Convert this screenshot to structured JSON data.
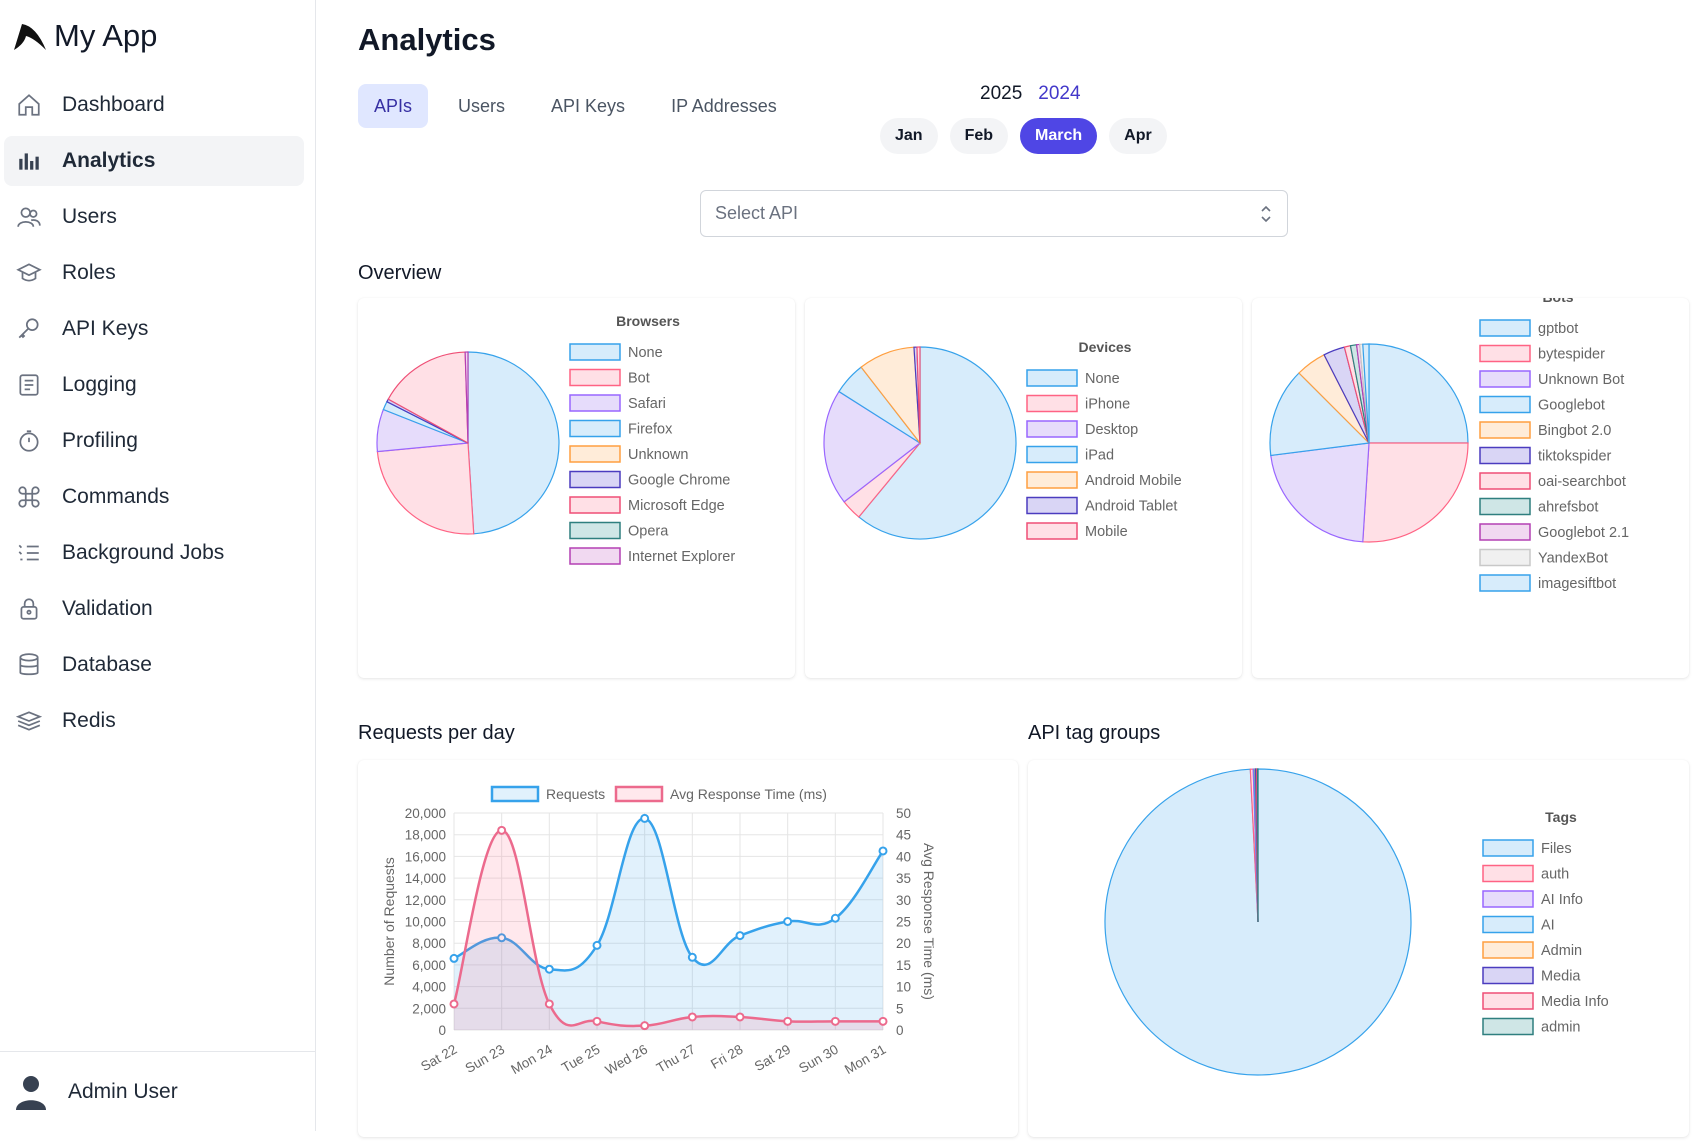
{
  "app": {
    "name": "My App"
  },
  "sidebar": {
    "items": [
      {
        "label": "Dashboard",
        "icon": "home-icon"
      },
      {
        "label": "Analytics",
        "icon": "bar-chart-icon",
        "active": true
      },
      {
        "label": "Users",
        "icon": "users-icon"
      },
      {
        "label": "Roles",
        "icon": "graduation-cap-icon"
      },
      {
        "label": "API Keys",
        "icon": "key-icon"
      },
      {
        "label": "Logging",
        "icon": "document-icon"
      },
      {
        "label": "Profiling",
        "icon": "stopwatch-icon"
      },
      {
        "label": "Commands",
        "icon": "command-icon"
      },
      {
        "label": "Background Jobs",
        "icon": "list-icon"
      },
      {
        "label": "Validation",
        "icon": "lock-icon"
      },
      {
        "label": "Database",
        "icon": "database-icon"
      },
      {
        "label": "Redis",
        "icon": "layers-icon"
      }
    ],
    "user": "Admin User"
  },
  "header": {
    "title": "Analytics"
  },
  "tabs": [
    {
      "label": "APIs",
      "active": true
    },
    {
      "label": "Users"
    },
    {
      "label": "API Keys"
    },
    {
      "label": "IP Addresses"
    }
  ],
  "years": [
    {
      "label": "2025"
    },
    {
      "label": "2024",
      "selected": true
    }
  ],
  "months": [
    {
      "label": "Jan"
    },
    {
      "label": "Feb"
    },
    {
      "label": "March",
      "active": true
    },
    {
      "label": "Apr"
    }
  ],
  "select_api": {
    "placeholder": "Select API"
  },
  "sections": {
    "overview": "Overview",
    "requests": "Requests per day",
    "tags": "API tag groups"
  },
  "colors": {
    "accent": "#4f46e5",
    "blue": "#36a2eb",
    "pink": "#ff6384"
  },
  "chart_data": [
    {
      "type": "pie",
      "title": "Browsers",
      "labels": [
        "None",
        "Bot",
        "Safari",
        "Firefox",
        "Unknown",
        "Google Chrome",
        "Microsoft Edge",
        "Opera",
        "Internet Explorer"
      ],
      "values": [
        49,
        24.5,
        7.5,
        1.5,
        0,
        0.5,
        16.5,
        0,
        0.5
      ],
      "legend": "right"
    },
    {
      "type": "pie",
      "title": "Devices",
      "labels": [
        "None",
        "iPhone",
        "Desktop",
        "iPad",
        "Android Mobile",
        "Android Tablet",
        "Mobile"
      ],
      "values": [
        61,
        3.5,
        19.5,
        5.5,
        9.5,
        0.5,
        0.5
      ],
      "legend": "right"
    },
    {
      "type": "pie",
      "title": "Bots",
      "labels": [
        "gptbot",
        "bytespider",
        "Unknown Bot",
        "Googlebot",
        "Bingbot 2.0",
        "tiktokspider",
        "oai-searchbot",
        "ahrefsbot",
        "Googlebot 2.1",
        "YandexBot",
        "imagesiftbot"
      ],
      "values": [
        25,
        26,
        22,
        14.5,
        5,
        3.5,
        1,
        1,
        0.5,
        0.5,
        1
      ],
      "legend": "right"
    },
    {
      "type": "line",
      "title": "",
      "categories": [
        "Sat 22",
        "Sun 23",
        "Mon 24",
        "Tue 25",
        "Wed 26",
        "Thu 27",
        "Fri 28",
        "Sat 29",
        "Sun 30",
        "Mon 31"
      ],
      "series": [
        {
          "name": "Requests",
          "axis": "left",
          "values": [
            6600,
            8500,
            5600,
            7800,
            19500,
            6700,
            8700,
            10000,
            10300,
            16500
          ]
        },
        {
          "name": "Avg Response Time (ms)",
          "axis": "right",
          "values": [
            6,
            46,
            6,
            2,
            1,
            3,
            3,
            2,
            2,
            2
          ]
        }
      ],
      "ylabel": "Number of Requests",
      "y2label": "Avg Response Time (ms)",
      "ylim": [
        0,
        20000
      ],
      "y2lim": [
        0,
        50
      ],
      "yticks": [
        "20,000",
        "18,000",
        "16,000",
        "14,000",
        "12,000",
        "10,000",
        "8,000",
        "6,000",
        "4,000",
        "2,000",
        "0"
      ],
      "y2ticks": [
        "50",
        "45",
        "40",
        "35",
        "30",
        "25",
        "20",
        "15",
        "10",
        "5",
        "0"
      ],
      "grid": true,
      "legend": "top"
    },
    {
      "type": "pie",
      "title": "Tags",
      "labels": [
        "Files",
        "auth",
        "AI Info",
        "AI",
        "Admin",
        "Media",
        "Media Info",
        "admin"
      ],
      "values": [
        99.2,
        0.3,
        0.1,
        0.1,
        0.05,
        0.1,
        0.1,
        0.05
      ],
      "legend": "right"
    }
  ]
}
